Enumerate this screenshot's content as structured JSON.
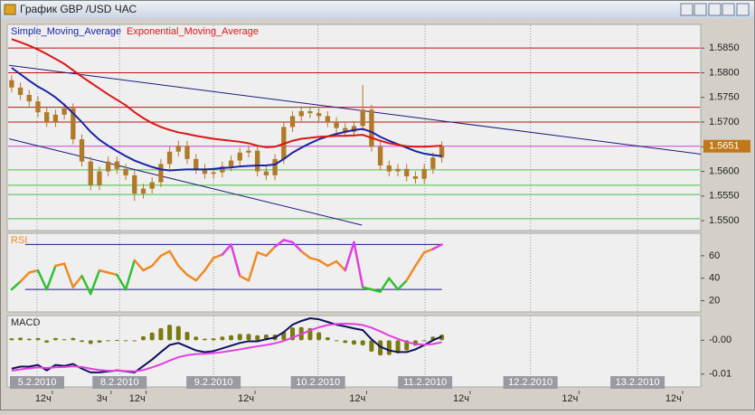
{
  "window": {
    "title": "График GBP /USD  ЧАС"
  },
  "chart_data": [
    {
      "type": "candlestick",
      "x": [
        0.5,
        1.5,
        2.5,
        3.5,
        4.5,
        5.5,
        6.5,
        7.5,
        8.5,
        9.5,
        10.5,
        11.5,
        12.5,
        13.5,
        14.5,
        15.5,
        16.5,
        17.5,
        18.5,
        19.5,
        20.5,
        21.5,
        22.5,
        23.5,
        24.5,
        25.5,
        26.5,
        27.5,
        28.5,
        29.5,
        30.5,
        31.5,
        32.5,
        33.5,
        34.5,
        35.5,
        36.5,
        37.5,
        38.5,
        39.5,
        40.5,
        41.5,
        42.5,
        43.5,
        44.5,
        45.5,
        46.5,
        47.5,
        48.5,
        49.5
      ],
      "open": [
        1.5785,
        1.577,
        1.5755,
        1.5742,
        1.572,
        1.57,
        1.5715,
        1.5728,
        1.5665,
        1.562,
        1.5572,
        1.56,
        1.562,
        1.5605,
        1.5592,
        1.5555,
        1.5565,
        1.5578,
        1.5615,
        1.564,
        1.5652,
        1.5625,
        1.5605,
        1.5595,
        1.5598,
        1.561,
        1.5622,
        1.5638,
        1.5642,
        1.56,
        1.5592,
        1.5625,
        1.569,
        1.5712,
        1.5722,
        1.5718,
        1.5712,
        1.57,
        1.5688,
        1.568,
        1.5692,
        1.5725,
        1.565,
        1.5612,
        1.56,
        1.5605,
        1.559,
        1.5585,
        1.5605,
        1.5628
      ],
      "high": [
        1.5795,
        1.578,
        1.5765,
        1.5752,
        1.573,
        1.5725,
        1.5738,
        1.5738,
        1.5675,
        1.563,
        1.561,
        1.563,
        1.563,
        1.5615,
        1.5602,
        1.5575,
        1.5588,
        1.5625,
        1.565,
        1.5662,
        1.5662,
        1.5635,
        1.5615,
        1.5608,
        1.562,
        1.5632,
        1.5648,
        1.5652,
        1.5652,
        1.561,
        1.5635,
        1.57,
        1.5722,
        1.5732,
        1.5732,
        1.5728,
        1.5722,
        1.571,
        1.5698,
        1.5702,
        1.5775,
        1.5735,
        1.566,
        1.5622,
        1.5615,
        1.5615,
        1.56,
        1.5615,
        1.5638,
        1.5661
      ],
      "low": [
        1.576,
        1.5745,
        1.5732,
        1.571,
        1.569,
        1.569,
        1.5705,
        1.5655,
        1.561,
        1.5562,
        1.5562,
        1.559,
        1.5595,
        1.5582,
        1.554,
        1.5545,
        1.5555,
        1.5568,
        1.5605,
        1.563,
        1.5615,
        1.5595,
        1.5585,
        1.5585,
        1.5588,
        1.56,
        1.5612,
        1.5628,
        1.559,
        1.5582,
        1.5582,
        1.5615,
        1.568,
        1.5702,
        1.5708,
        1.5702,
        1.569,
        1.5678,
        1.567,
        1.567,
        1.5682,
        1.564,
        1.5602,
        1.559,
        1.559,
        1.558,
        1.5575,
        1.5575,
        1.5595,
        1.5618
      ],
      "close": [
        1.577,
        1.5755,
        1.5742,
        1.572,
        1.57,
        1.5715,
        1.5728,
        1.5665,
        1.562,
        1.5572,
        1.56,
        1.562,
        1.5605,
        1.5592,
        1.5555,
        1.5565,
        1.5578,
        1.5615,
        1.564,
        1.5652,
        1.5625,
        1.5605,
        1.5595,
        1.5598,
        1.561,
        1.5622,
        1.5638,
        1.5642,
        1.56,
        1.5592,
        1.5625,
        1.569,
        1.5712,
        1.5722,
        1.5718,
        1.5712,
        1.57,
        1.5688,
        1.568,
        1.5692,
        1.5725,
        1.565,
        1.5612,
        1.56,
        1.5605,
        1.559,
        1.5585,
        1.5605,
        1.5628,
        1.5651
      ],
      "candle_color": "#b07a2a",
      "series": [
        {
          "name": "Simple_Moving_Average",
          "color": "#1a24a8",
          "values": [
            1.581,
            1.5797,
            1.5784,
            1.5772,
            1.5762,
            1.575,
            1.5735,
            1.5718,
            1.57,
            1.568,
            1.5664,
            1.5652,
            1.5641,
            1.5631,
            1.5622,
            1.5615,
            1.5609,
            1.5604,
            1.5602,
            1.5603,
            1.5604,
            1.5604,
            1.5604,
            1.5605,
            1.5607,
            1.5608,
            1.561,
            1.5611,
            1.5612,
            1.5612,
            1.5614,
            1.5625,
            1.5638,
            1.5648,
            1.5657,
            1.5665,
            1.5671,
            1.5676,
            1.568,
            1.5684,
            1.5686,
            1.568,
            1.567,
            1.5662,
            1.5655,
            1.5648,
            1.5641,
            1.5636,
            1.5633,
            1.5631
          ]
        },
        {
          "name": "Exponential_Moving_Average",
          "color": "#dd1515",
          "values": [
            1.5868,
            1.5862,
            1.5855,
            1.5847,
            1.5838,
            1.5828,
            1.5818,
            1.5805,
            1.5792,
            1.578,
            1.5768,
            1.5756,
            1.5745,
            1.5734,
            1.572,
            1.5708,
            1.5698,
            1.569,
            1.5684,
            1.5679,
            1.5676,
            1.5672,
            1.5669,
            1.5666,
            1.5664,
            1.5662,
            1.566,
            1.5657,
            1.5652,
            1.5649,
            1.565,
            1.5656,
            1.5662,
            1.5666,
            1.5668,
            1.567,
            1.5671,
            1.5672,
            1.5672,
            1.5673,
            1.5674,
            1.5668,
            1.5662,
            1.5657,
            1.5654,
            1.5651,
            1.565,
            1.565,
            1.5651,
            1.5652
          ]
        }
      ],
      "xlim": [
        0,
        79
      ],
      "ylim": [
        1.548,
        1.5898
      ],
      "yticks": [
        {
          "value": 1.585,
          "label": "1.5850"
        },
        {
          "value": 1.58,
          "label": "1.5800"
        },
        {
          "value": 1.575,
          "label": "1.5750"
        },
        {
          "value": 1.57,
          "label": "1.5700"
        },
        {
          "value": 1.565,
          "label": "1.5650"
        },
        {
          "value": 1.56,
          "label": "1.5600"
        },
        {
          "value": 1.555,
          "label": "1.5550"
        },
        {
          "value": 1.55,
          "label": "1.5500"
        }
      ],
      "xticks": [
        {
          "value": 3.4,
          "label": "5.2.2010"
        },
        {
          "value": 12.8,
          "label": "8.2.2010"
        },
        {
          "value": 23.5,
          "label": "9.2.2010"
        },
        {
          "value": 35.4,
          "label": "10.2.2010"
        },
        {
          "value": 47.6,
          "label": "11.2.2010"
        },
        {
          "value": 59.6,
          "label": "12.2.2010"
        },
        {
          "value": 71.8,
          "label": "13.2.2010"
        }
      ],
      "xticks_hours": [
        {
          "value": 4.1,
          "label": "12ч"
        },
        {
          "value": 10.8,
          "label": "3ч"
        },
        {
          "value": 14.8,
          "label": "12ч"
        },
        {
          "value": 27.2,
          "label": "12ч"
        },
        {
          "value": 39.9,
          "label": "12ч"
        },
        {
          "value": 51.7,
          "label": "12ч"
        },
        {
          "value": 64.1,
          "label": "12ч"
        },
        {
          "value": 75.9,
          "label": "12ч"
        }
      ],
      "levels": [
        {
          "value": 1.585,
          "color": "#c01010"
        },
        {
          "value": 1.58,
          "color": "#c01010"
        },
        {
          "value": 1.573,
          "color": "#c01010"
        },
        {
          "value": 1.57,
          "color": "#c01010"
        },
        {
          "value": 1.5603,
          "color": "#40c040"
        },
        {
          "value": 1.5572,
          "color": "#40c040"
        },
        {
          "value": 1.5553,
          "color": "#40c040"
        },
        {
          "value": 1.5504,
          "color": "#40c040"
        }
      ],
      "trendlines": [
        {
          "x": [
            0.2,
            79
          ],
          "y": [
            1.5815,
            1.5635
          ],
          "color": "#1a1a80"
        },
        {
          "x": [
            0.2,
            40.4
          ],
          "y": [
            1.5666,
            1.5491
          ],
          "color": "#1a1a80"
        }
      ],
      "last_price": {
        "value": 1.5651,
        "label": "1.5651"
      },
      "last_color": "#c07818",
      "last_line_color": "#d040d0"
    },
    {
      "type": "rsi",
      "title": "RSI",
      "color": "#f08a24",
      "overbought_color": "#e040e0",
      "oversold_color": "#30c030",
      "values": [
        30,
        37,
        45,
        47,
        30,
        51,
        53,
        32,
        42,
        26,
        47,
        45,
        43,
        30,
        56,
        47,
        51,
        60,
        64,
        51,
        43,
        38,
        47,
        58,
        61,
        70,
        42,
        38,
        63,
        60,
        68,
        74,
        72,
        64,
        58,
        56,
        51,
        55,
        47,
        72,
        32,
        30,
        28,
        40,
        30,
        38,
        51,
        63,
        66,
        70
      ],
      "ylim": [
        10,
        80
      ],
      "yticks": [
        60,
        40,
        20
      ],
      "levels": [
        70,
        30
      ],
      "level_color": "#1a1a80"
    },
    {
      "type": "macd",
      "title": "MACD",
      "macd": {
        "color": "#101060",
        "values": [
          -0.0084,
          -0.0078,
          -0.0078,
          -0.0073,
          -0.0089,
          -0.0073,
          -0.0076,
          -0.007,
          -0.0084,
          -0.0095,
          -0.0095,
          -0.0092,
          -0.0089,
          -0.0092,
          -0.0095,
          -0.0076,
          -0.0057,
          -0.0035,
          -0.0014,
          -0.0008,
          -0.0019,
          -0.003,
          -0.0035,
          -0.0032,
          -0.0024,
          -0.0016,
          -0.0008,
          -0.0003,
          -0.0003,
          0.0003,
          0.0008,
          0.0024,
          0.0046,
          0.0057,
          0.0065,
          0.0062,
          0.0054,
          0.0046,
          0.0041,
          0.0035,
          0.003,
          0.0003,
          -0.0019,
          -0.003,
          -0.0035,
          -0.0035,
          -0.0027,
          -0.0014,
          0.0,
          0.0011
        ]
      },
      "signal": {
        "color": "#e040e0",
        "values": [
          -0.009,
          -0.0086,
          -0.0083,
          -0.008,
          -0.0082,
          -0.008,
          -0.0079,
          -0.0077,
          -0.0079,
          -0.0084,
          -0.0088,
          -0.009,
          -0.009,
          -0.0091,
          -0.0092,
          -0.0088,
          -0.008,
          -0.0071,
          -0.006,
          -0.005,
          -0.0044,
          -0.0041,
          -0.004,
          -0.0038,
          -0.0035,
          -0.0031,
          -0.0027,
          -0.0022,
          -0.0018,
          -0.0014,
          -0.0009,
          -0.0002,
          0.0008,
          0.0018,
          0.0029,
          0.0038,
          0.0045,
          0.0048,
          0.0049,
          0.0048,
          0.0045,
          0.0037,
          0.0026,
          0.0014,
          0.0004,
          -0.0005,
          -0.0011,
          -0.0013,
          -0.0011,
          -0.0006
        ]
      },
      "histogram": {
        "color": "#7a7a10",
        "values": [
          0.0006,
          0.0008,
          0.0005,
          0.0007,
          -0.0007,
          0.0007,
          0.0003,
          0.0007,
          -0.0005,
          -0.0011,
          -0.0007,
          -0.0002,
          0.0001,
          -0.0001,
          -0.0003,
          0.0012,
          0.0023,
          0.0036,
          0.0046,
          0.0042,
          0.0025,
          0.0011,
          0.0005,
          0.0006,
          0.0011,
          0.0015,
          0.0019,
          0.0019,
          0.0015,
          0.0017,
          0.0017,
          0.0026,
          0.0038,
          0.0039,
          0.0036,
          0.0024,
          0.0009,
          -0.0002,
          -0.0008,
          -0.0013,
          -0.0015,
          -0.0034,
          -0.0045,
          -0.0044,
          -0.0039,
          -0.003,
          -0.0016,
          -0.0001,
          0.0011,
          0.0017
        ]
      },
      "ylim": [
        -0.0138,
        0.0073
      ],
      "yticks": [
        {
          "value": 0,
          "label": "-0.00"
        },
        {
          "value": -0.01,
          "label": "-0.01"
        }
      ]
    }
  ]
}
